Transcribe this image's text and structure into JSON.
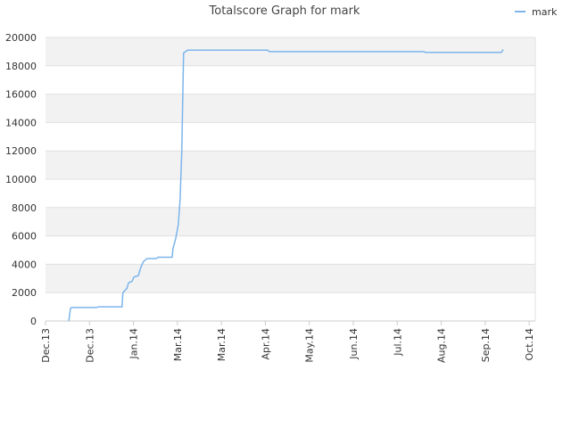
{
  "chart_data": {
    "type": "line",
    "title": "Totalscore Graph for mark",
    "series": [
      {
        "name": "mark",
        "color": "#7cb5ec",
        "x": [
          0.53,
          0.55,
          0.57,
          0.59,
          1.16,
          1.2,
          1.74,
          1.76,
          1.85,
          1.89,
          1.97,
          2.01,
          2.11,
          2.17,
          2.23,
          2.31,
          2.52,
          2.56,
          2.88,
          2.9,
          2.96,
          3.02,
          3.06,
          3.1,
          3.14,
          3.23,
          5.05,
          5.09,
          8.6,
          8.64,
          10.37,
          10.41
        ],
        "values": [
          0,
          500,
          900,
          950,
          950,
          1000,
          1000,
          2000,
          2300,
          2700,
          2800,
          3100,
          3200,
          3800,
          4200,
          4400,
          4400,
          4500,
          4500,
          5100,
          5800,
          6800,
          8500,
          12000,
          18900,
          19100,
          19100,
          19000,
          19000,
          18950,
          18950,
          19150
        ]
      }
    ],
    "xlim": [
      0,
      11.14
    ],
    "xticks": [
      {
        "value": 0,
        "label": "Dec.13"
      },
      {
        "value": 1,
        "label": "Dec.13"
      },
      {
        "value": 2,
        "label": "Jan.14"
      },
      {
        "value": 3,
        "label": "Mar.14"
      },
      {
        "value": 4,
        "label": "Mar.14"
      },
      {
        "value": 5,
        "label": "Apr.14"
      },
      {
        "value": 6,
        "label": "May.14"
      },
      {
        "value": 7,
        "label": "Jun.14"
      },
      {
        "value": 8,
        "label": "Jul.14"
      },
      {
        "value": 9,
        "label": "Aug.14"
      },
      {
        "value": 10,
        "label": "Sep.14"
      },
      {
        "value": 11,
        "label": "Oct.14"
      }
    ],
    "ylim": [
      0,
      20000
    ],
    "yticks": [
      0,
      2000,
      4000,
      6000,
      8000,
      10000,
      12000,
      14000,
      16000,
      18000,
      20000
    ],
    "grid": true,
    "legend": "top-right"
  }
}
